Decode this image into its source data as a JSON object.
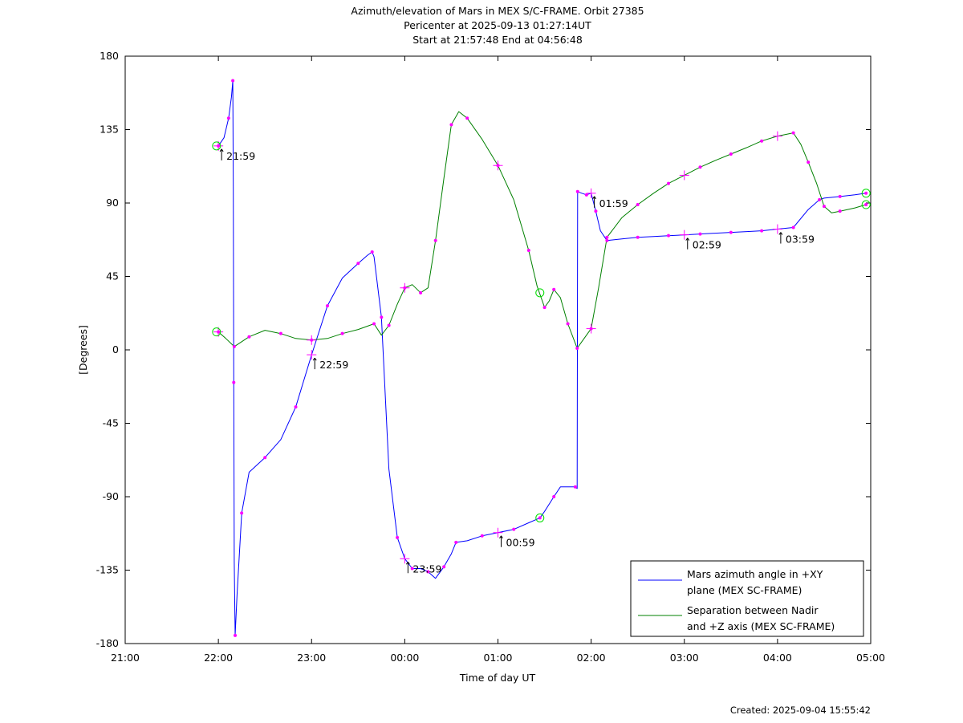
{
  "title_lines": [
    "Azimuth/elevation of Mars in MEX S/C-FRAME.  Orbit 27385",
    "Pericenter at 2025-09-13 01:27:14UT",
    "Start at 21:57:48 End at 04:56:48"
  ],
  "footer": {
    "created": "Created: 2025-09-04 15:55:42"
  },
  "chart_data": {
    "type": "line",
    "title": "Azimuth/elevation of Mars in MEX S/C-FRAME.  Orbit 27385",
    "subtitle": [
      "Pericenter at 2025-09-13 01:27:14UT",
      "Start at 21:57:48 End at 04:56:48"
    ],
    "xlabel": "Time of day UT",
    "ylabel": "[Degrees]",
    "xlim": [
      -3.0,
      5.0
    ],
    "ylim": [
      -180,
      180
    ],
    "x_note": "hours relative to 00:00 UT (negative = before midnight)",
    "xticks": [
      -3,
      -2,
      -1,
      0,
      1,
      2,
      3,
      4,
      5
    ],
    "xtick_labels": [
      "21:00",
      "22:00",
      "23:00",
      "00:00",
      "01:00",
      "02:00",
      "03:00",
      "04:00",
      "05:00"
    ],
    "yticks": [
      -180,
      -135,
      -90,
      -45,
      0,
      45,
      90,
      135,
      180
    ],
    "ytick_labels": [
      "-180",
      "-135",
      "-90",
      "-45",
      "0",
      "45",
      "90",
      "135",
      "180"
    ],
    "grid": false,
    "legend_position": "bottom-right",
    "marker_color": "#ff00ff",
    "circle_color": "#00dd00",
    "series": [
      {
        "name": "Mars azimuth angle in +XY plane (MEX SC-FRAME)",
        "legend_lines": [
          "Mars azimuth angle in +XY",
          "plane (MEX SC-FRAME)"
        ],
        "color": "#0000ff",
        "points": [
          [
            -2.0,
            125
          ],
          [
            -1.94,
            130
          ],
          [
            -1.89,
            142
          ],
          [
            -1.86,
            155
          ],
          [
            -1.845,
            165
          ],
          [
            -1.84,
            100
          ],
          [
            -1.835,
            -20
          ],
          [
            -1.83,
            -130
          ],
          [
            -1.82,
            -175
          ],
          [
            -1.8,
            -150
          ],
          [
            -1.75,
            -100
          ],
          [
            -1.67,
            -75
          ],
          [
            -1.5,
            -66
          ],
          [
            -1.33,
            -55
          ],
          [
            -1.17,
            -35
          ],
          [
            -1.0,
            -3
          ],
          [
            -0.83,
            27
          ],
          [
            -0.67,
            44
          ],
          [
            -0.5,
            53
          ],
          [
            -0.4,
            58
          ],
          [
            -0.35,
            60
          ],
          [
            -0.33,
            57
          ],
          [
            -0.25,
            20
          ],
          [
            -0.17,
            -73
          ],
          [
            -0.08,
            -115
          ],
          [
            0.0,
            -128
          ],
          [
            0.08,
            -134
          ],
          [
            0.17,
            -134
          ],
          [
            0.25,
            -136
          ],
          [
            0.33,
            -140
          ],
          [
            0.42,
            -133
          ],
          [
            0.5,
            -125
          ],
          [
            0.55,
            -118
          ],
          [
            0.67,
            -117
          ],
          [
            0.83,
            -114
          ],
          [
            1.0,
            -112
          ],
          [
            1.17,
            -110
          ],
          [
            1.33,
            -106
          ],
          [
            1.45,
            -103
          ],
          [
            1.5,
            -99
          ],
          [
            1.6,
            -90
          ],
          [
            1.67,
            -84
          ],
          [
            1.83,
            -84
          ],
          [
            1.85,
            -85
          ],
          [
            1.855,
            97
          ],
          [
            1.9,
            96
          ],
          [
            1.95,
            95
          ],
          [
            2.0,
            96
          ],
          [
            2.05,
            85
          ],
          [
            2.1,
            73
          ],
          [
            2.17,
            67
          ],
          [
            2.33,
            68
          ],
          [
            2.5,
            69
          ],
          [
            2.67,
            69.5
          ],
          [
            2.83,
            70
          ],
          [
            3.0,
            70.5
          ],
          [
            3.17,
            71
          ],
          [
            3.33,
            71.5
          ],
          [
            3.5,
            72
          ],
          [
            3.67,
            72.5
          ],
          [
            3.83,
            73
          ],
          [
            4.0,
            74
          ],
          [
            4.17,
            75
          ],
          [
            4.33,
            86
          ],
          [
            4.45,
            92
          ],
          [
            4.5,
            93
          ],
          [
            4.67,
            94
          ],
          [
            4.83,
            95
          ],
          [
            4.95,
            96
          ]
        ]
      },
      {
        "name": "Separation between Nadir and +Z axis (MEX SC-FRAME)",
        "legend_lines": [
          "Separation between Nadir",
          "and +Z axis (MEX SC-FRAME)"
        ],
        "color": "#008000",
        "points": [
          [
            -2.0,
            11
          ],
          [
            -1.92,
            7
          ],
          [
            -1.83,
            2
          ],
          [
            -1.75,
            5
          ],
          [
            -1.67,
            8
          ],
          [
            -1.5,
            12
          ],
          [
            -1.33,
            10
          ],
          [
            -1.17,
            7
          ],
          [
            -1.0,
            6
          ],
          [
            -0.83,
            7
          ],
          [
            -0.67,
            10
          ],
          [
            -0.5,
            12.5
          ],
          [
            -0.33,
            16
          ],
          [
            -0.25,
            9
          ],
          [
            -0.17,
            15
          ],
          [
            -0.08,
            28
          ],
          [
            0.0,
            38
          ],
          [
            0.08,
            40
          ],
          [
            0.17,
            35
          ],
          [
            0.25,
            38
          ],
          [
            0.33,
            67
          ],
          [
            0.42,
            105
          ],
          [
            0.5,
            138
          ],
          [
            0.58,
            146
          ],
          [
            0.67,
            142
          ],
          [
            0.83,
            129
          ],
          [
            1.0,
            113
          ],
          [
            1.17,
            92
          ],
          [
            1.33,
            61
          ],
          [
            1.42,
            39
          ],
          [
            1.5,
            26
          ],
          [
            1.55,
            30
          ],
          [
            1.6,
            37
          ],
          [
            1.67,
            32
          ],
          [
            1.75,
            16
          ],
          [
            1.83,
            4
          ],
          [
            1.85,
            1
          ],
          [
            1.9,
            5
          ],
          [
            2.0,
            13
          ],
          [
            2.08,
            38
          ],
          [
            2.17,
            69
          ],
          [
            2.33,
            81
          ],
          [
            2.5,
            89
          ],
          [
            2.67,
            96
          ],
          [
            2.83,
            102
          ],
          [
            3.0,
            107
          ],
          [
            3.17,
            112
          ],
          [
            3.33,
            116
          ],
          [
            3.5,
            120
          ],
          [
            3.67,
            124
          ],
          [
            3.83,
            128
          ],
          [
            4.0,
            131
          ],
          [
            4.17,
            133
          ],
          [
            4.25,
            126
          ],
          [
            4.33,
            115
          ],
          [
            4.42,
            102
          ],
          [
            4.5,
            88
          ],
          [
            4.58,
            84
          ],
          [
            4.67,
            85
          ],
          [
            4.83,
            87
          ],
          [
            4.95,
            89
          ]
        ]
      }
    ],
    "time_labels": [
      {
        "text": "21:59",
        "x": -2.0,
        "y": 125
      },
      {
        "text": "22:59",
        "x": -1.0,
        "y": -3
      },
      {
        "text": "23:59",
        "x": 0.0,
        "y": -128
      },
      {
        "text": "00:59",
        "x": 1.0,
        "y": -112
      },
      {
        "text": "01:59",
        "x": 2.0,
        "y": 96
      },
      {
        "text": "02:59",
        "x": 3.0,
        "y": 70.5
      },
      {
        "text": "03:59",
        "x": 4.0,
        "y": 74
      }
    ],
    "hour_crosses": [
      [
        -2.0,
        125
      ],
      [
        -1.0,
        -3
      ],
      [
        0.0,
        -128
      ],
      [
        1.0,
        -112
      ],
      [
        2.0,
        96
      ],
      [
        3.0,
        70.5
      ],
      [
        4.0,
        74
      ],
      [
        -2.0,
        11
      ],
      [
        -1.0,
        6
      ],
      [
        0.0,
        38
      ],
      [
        1.0,
        113
      ],
      [
        2.0,
        13
      ],
      [
        3.0,
        107
      ],
      [
        4.0,
        131
      ]
    ],
    "circles": [
      [
        -2.02,
        125
      ],
      [
        -2.02,
        11
      ],
      [
        1.45,
        -103
      ],
      [
        1.45,
        35
      ],
      [
        4.95,
        96
      ],
      [
        4.95,
        89
      ]
    ]
  }
}
